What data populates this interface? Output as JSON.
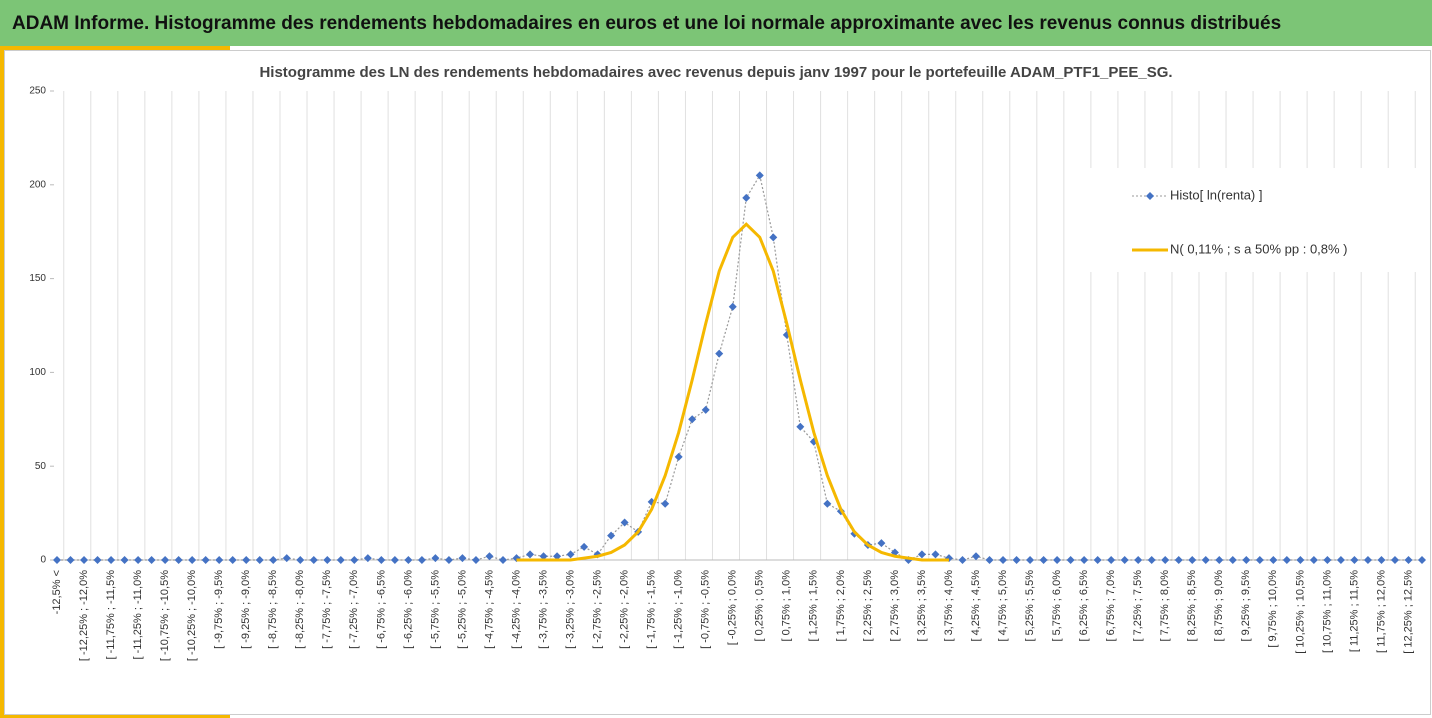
{
  "header": {
    "title": "ADAM Informe. Histogramme des rendements hebdomadaires en euros et une loi normale approximante avec les revenus connus distribués"
  },
  "chart_data": {
    "type": "line",
    "title": "Histogramme des LN des rendements hebdomadaires avec revenus depuis janv 1997 pour le portefeuille ADAM_PTF1_PEE_SG.",
    "categories": [
      "-12,5% <",
      null,
      "[ -12,25% ; -12,0%",
      null,
      "[ -11,75% ; -11,5%",
      null,
      "[ -11,25% ; -11,0%",
      null,
      "[ -10,75% ; -10,5%",
      null,
      "[ -10,25% ; -10,0%",
      null,
      "[ -9,75% ; -9,5%",
      null,
      "[ -9,25% ; -9,0%",
      null,
      "[ -8,75% ; -8,5%",
      null,
      "[ -8,25% ; -8,0%",
      null,
      "[ -7,75% ; -7,5%",
      null,
      "[ -7,25% ; -7,0%",
      null,
      "[ -6,75% ; -6,5%",
      null,
      "[ -6,25% ; -6,0%",
      null,
      "[ -5,75% ; -5,5%",
      null,
      "[ -5,25% ; -5,0%",
      null,
      "[ -4,75% ; -4,5%",
      null,
      "[ -4,25% ; -4,0%",
      null,
      "[ -3,75% ; -3,5%",
      null,
      "[ -3,25% ; -3,0%",
      null,
      "[ -2,75% ; -2,5%",
      null,
      "[ -2,25% ; -2,0%",
      null,
      "[ -1,75% ; -1,5%",
      null,
      "[ -1,25% ; -1,0%",
      null,
      "[ -0,75% ; -0,5%",
      null,
      "[ -0,25% ; 0,0%",
      null,
      "[ 0,25% ; 0,5%",
      null,
      "[ 0,75% ; 1,0%",
      null,
      "[ 1,25% ; 1,5%",
      null,
      "[ 1,75% ; 2,0%",
      null,
      "[ 2,25% ; 2,5%",
      null,
      "[ 2,75% ; 3,0%",
      null,
      "[ 3,25% ; 3,5%",
      null,
      "[ 3,75% ; 4,0%",
      null,
      "[ 4,25% ; 4,5%",
      null,
      "[ 4,75% ; 5,0%",
      null,
      "[ 5,25% ; 5,5%",
      null,
      "[ 5,75% ; 6,0%",
      null,
      "[ 6,25% ; 6,5%",
      null,
      "[ 6,75% ; 7,0%",
      null,
      "[ 7,25% ; 7,5%",
      null,
      "[ 7,75% ; 8,0%",
      null,
      "[ 8,25% ; 8,5%",
      null,
      "[ 8,75% ; 9,0%",
      null,
      "[ 9,25% ; 9,5%",
      null,
      "[ 9,75% ; 10,0%",
      null,
      "[ 10,25% ; 10,5%",
      null,
      "[ 10,75% ; 11,0%",
      null,
      "[ 11,25% ; 11,5%",
      null,
      "[ 11,75% ; 12,0%",
      null,
      "[ 12,25% ; 12,5%",
      null
    ],
    "series": [
      {
        "name": "Histo[ ln(renta) ]",
        "color": "#4472c4",
        "values": [
          0,
          0,
          0,
          0,
          0,
          0,
          0,
          0,
          0,
          0,
          0,
          0,
          0,
          0,
          0,
          0,
          0,
          1,
          0,
          0,
          0,
          0,
          0,
          1,
          0,
          0,
          0,
          0,
          1,
          0,
          1,
          0,
          2,
          0,
          1,
          3,
          2,
          2,
          3,
          7,
          3,
          13,
          20,
          15,
          31,
          30,
          55,
          75,
          80,
          110,
          135,
          193,
          205,
          172,
          120,
          71,
          63,
          30,
          26,
          14,
          8,
          9,
          4,
          0,
          3,
          3,
          1,
          0,
          2,
          0,
          0,
          0,
          0,
          0,
          0,
          0,
          0,
          0,
          0,
          0,
          0,
          0,
          0,
          0,
          0,
          0,
          0,
          0,
          0,
          0,
          0,
          0,
          0,
          0,
          0,
          0,
          0,
          0,
          0,
          0,
          0,
          0
        ]
      },
      {
        "name": "N( 0,11% ; s a 50% pp : 0,8% )",
        "color": "#f5b800",
        "values": [
          null,
          null,
          null,
          null,
          null,
          null,
          null,
          null,
          null,
          null,
          null,
          null,
          null,
          null,
          null,
          null,
          null,
          null,
          null,
          null,
          null,
          null,
          null,
          null,
          null,
          null,
          null,
          null,
          null,
          null,
          null,
          null,
          null,
          null,
          0,
          0,
          0,
          0,
          0,
          1,
          2,
          4,
          8,
          15,
          27,
          45,
          68,
          96,
          126,
          154,
          172,
          179,
          172,
          154,
          126,
          96,
          68,
          45,
          27,
          15,
          8,
          4,
          2,
          1,
          0,
          0,
          0,
          null,
          null,
          null,
          null,
          null,
          null,
          null,
          null,
          null,
          null,
          null,
          null,
          null,
          null,
          null,
          null,
          null,
          null,
          null,
          null,
          null,
          null,
          null,
          null,
          null,
          null,
          null,
          null,
          null,
          null,
          null,
          null,
          null,
          null,
          null
        ]
      }
    ],
    "ylim": [
      0,
      250
    ],
    "yticks": [
      0,
      50,
      100,
      150,
      200,
      250
    ],
    "legend": "right"
  }
}
